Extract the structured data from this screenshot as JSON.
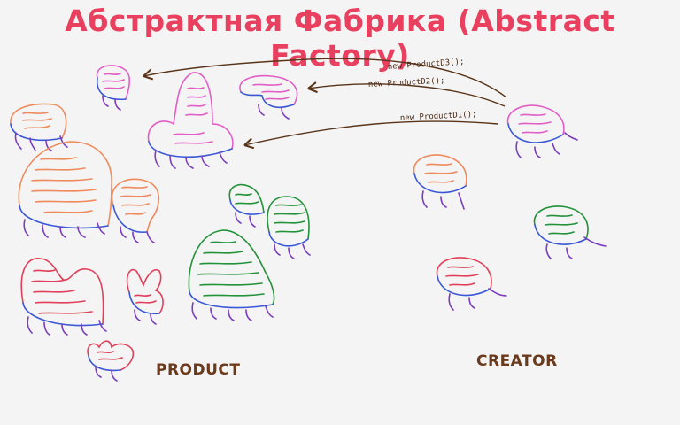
{
  "title": "Абстрактная Фабрика (Abstract Factory)",
  "labels": {
    "product": "PRODUCT",
    "creator": "CREATOR"
  },
  "calls": [
    "new ProductD3();",
    "new ProductD2();",
    "new ProductD1();"
  ],
  "colors": {
    "title": "#e8405e",
    "label": "#6b3a1c",
    "arrow": "#5a3418",
    "orange": "#ee8a5c",
    "pink": "#e25ec7",
    "red": "#e0405a",
    "green": "#23923a",
    "blue": "#3a57d6",
    "purple": "#7a3dbd"
  }
}
